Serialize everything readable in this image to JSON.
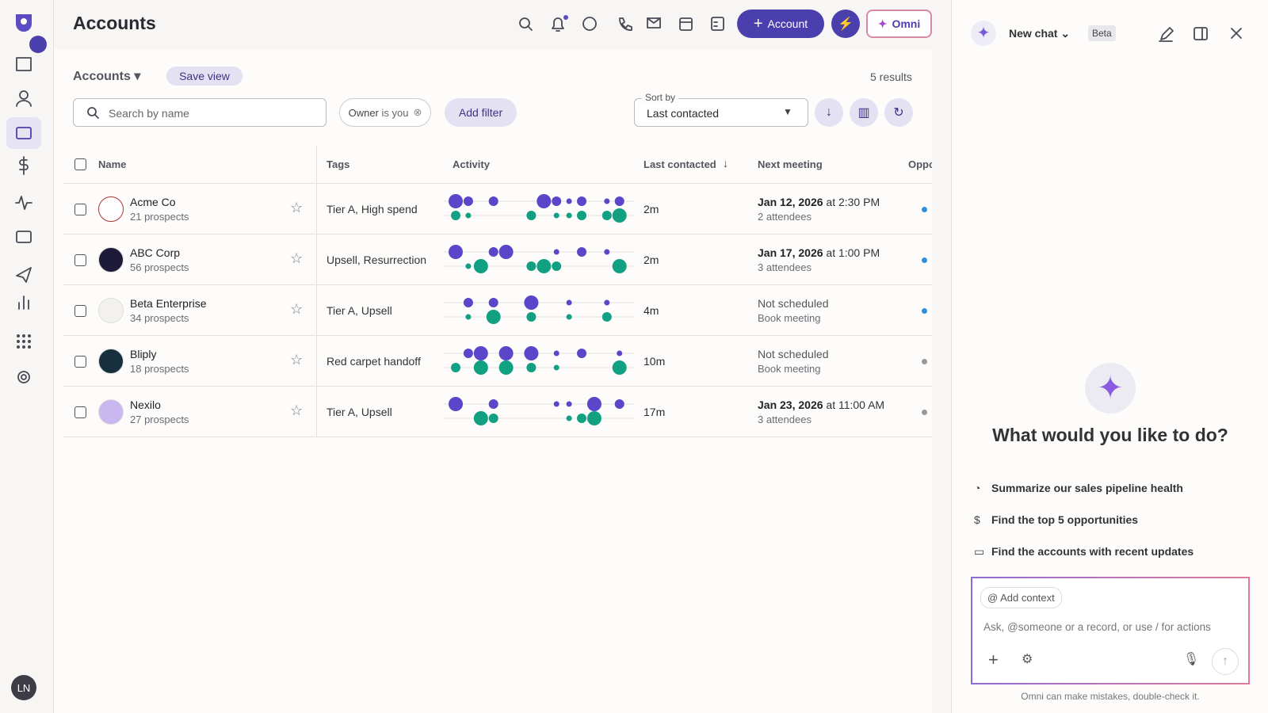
{
  "header": {
    "title": "Accounts",
    "new_account_button": "Account",
    "omni_button": "Omni"
  },
  "toolbar": {
    "view_name": "Accounts",
    "save_view": "Save view",
    "results": "5 results",
    "search_placeholder": "Search by name",
    "owner_filter": {
      "label": "Owner",
      "value": "is you"
    },
    "add_filter": "Add filter",
    "sort_label": "Sort by",
    "sort_value": "Last contacted"
  },
  "table": {
    "columns": [
      "Name",
      "Tags",
      "Activity",
      "Last contacted",
      "Next meeting",
      "Oppo"
    ],
    "rows": [
      {
        "name": "Acme Co",
        "prospects": "21 prospects",
        "tags": "Tier A, High spend",
        "activity": {
          "outbound": [
            3,
            2,
            0,
            2,
            0,
            0,
            0,
            3,
            2,
            1,
            2,
            0,
            1,
            2
          ],
          "inbound": [
            2,
            1,
            0,
            0,
            0,
            0,
            2,
            0,
            1,
            1,
            2,
            0,
            2,
            3
          ]
        },
        "last_contacted": "2m",
        "meeting": {
          "primary": "Jan 12, 2026",
          "secondary": "at 2:30 PM",
          "detail": "2 attendees"
        },
        "oppo_color": "#2d8fe0"
      },
      {
        "name": "ABC Corp",
        "prospects": "56 prospects",
        "tags": "Upsell, Resurrection",
        "activity": {
          "outbound": [
            3,
            0,
            0,
            2,
            3,
            0,
            0,
            0,
            1,
            0,
            2,
            0,
            1,
            0
          ],
          "inbound": [
            0,
            1,
            3,
            0,
            0,
            0,
            2,
            3,
            2,
            0,
            0,
            0,
            0,
            3
          ]
        },
        "last_contacted": "2m",
        "meeting": {
          "primary": "Jan 17, 2026",
          "secondary": "at 1:00 PM",
          "detail": "3 attendees"
        },
        "oppo_color": "#2d8fe0"
      },
      {
        "name": "Beta Enterprise",
        "prospects": "34 prospects",
        "tags": "Tier A, Upsell",
        "activity": {
          "outbound": [
            0,
            2,
            0,
            2,
            0,
            0,
            3,
            0,
            0,
            1,
            0,
            0,
            1,
            0
          ],
          "inbound": [
            0,
            1,
            0,
            3,
            0,
            0,
            2,
            0,
            0,
            1,
            0,
            0,
            2,
            0
          ]
        },
        "last_contacted": "4m",
        "meeting": {
          "primary": "Not scheduled",
          "detail": "Book meeting"
        },
        "oppo_color": "#2d8fe0"
      },
      {
        "name": "Bliply",
        "prospects": "18 prospects",
        "tags": "Red carpet handoff",
        "activity": {
          "outbound": [
            0,
            2,
            3,
            0,
            3,
            0,
            3,
            0,
            1,
            0,
            2,
            0,
            0,
            1
          ],
          "inbound": [
            2,
            0,
            3,
            0,
            3,
            0,
            2,
            0,
            1,
            0,
            0,
            0,
            0,
            3
          ]
        },
        "last_contacted": "10m",
        "meeting": {
          "primary": "Not scheduled",
          "detail": "Book meeting"
        },
        "oppo_color": "#999999"
      },
      {
        "name": "Nexilo",
        "prospects": "27 prospects",
        "tags": "Tier A, Upsell",
        "activity": {
          "outbound": [
            3,
            0,
            0,
            2,
            0,
            0,
            0,
            0,
            1,
            1,
            0,
            3,
            0,
            2
          ],
          "inbound": [
            0,
            0,
            3,
            2,
            0,
            0,
            0,
            0,
            0,
            1,
            2,
            3,
            0,
            0
          ]
        },
        "last_contacted": "17m",
        "meeting": {
          "primary": "Jan 23, 2026",
          "secondary": "at 11:00 AM",
          "detail": "3 attendees"
        },
        "oppo_color": "#999999"
      }
    ]
  },
  "sidebar": {
    "avatar": "LN"
  },
  "chat": {
    "title": "New chat",
    "badge": "Beta",
    "heading": "What would you like to do?",
    "suggestions": [
      "Summarize our sales pipeline health",
      "Find the top 5 opportunities",
      "Find the accounts with recent updates"
    ],
    "add_context": "Add context",
    "input_placeholder": "Ask, @someone or a record, or use / for actions",
    "disclaimer": "Omni can make mistakes, double-check it."
  }
}
